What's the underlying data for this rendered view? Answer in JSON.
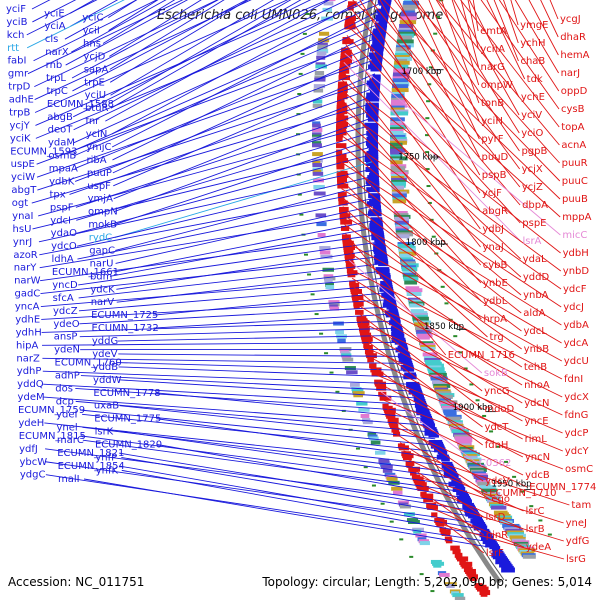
{
  "title": "Escherichia coli UMN026, complete genome",
  "footer": {
    "accession": "Accession: NC_011751",
    "summary": "Topology: circular; Length: 5,202,090 bp; Genes: 5,014"
  },
  "colors": {
    "forward": "#1a1adc",
    "reverse": "#e01515",
    "rna": "#2aa7e6",
    "pseudo": "#e58ad6",
    "backbone": "#888888"
  },
  "kbp_markers": [
    "1550 kbp",
    "1600 kbp",
    "1650 kbp",
    "1700 kbp",
    "1750 kbp",
    "1800 kbp",
    "1850 kbp",
    "1900 kbp",
    "1950 kbp"
  ],
  "left_labels": [
    "yciF",
    "yciE",
    "yciC",
    "yciB",
    "yciA",
    "yciI",
    "kch",
    "cls",
    "hns",
    "rtt",
    "narX",
    "ycjD",
    "fabI",
    "rnb",
    "sapA",
    "gmr",
    "trpL",
    "trpE",
    "trpD",
    "trpC",
    "yciU",
    "adhE",
    "ECUMN_1588",
    "btuR",
    "trpB",
    "abgB",
    "fnr",
    "ycjY",
    "deoT",
    "yciN",
    "yciK",
    "ydaM",
    "ymjC",
    "ECUMN_1593",
    "osmB",
    "ribA",
    "uspE",
    "mpaA",
    "puuP",
    "yciW",
    "ydbK",
    "uspF",
    "abgT",
    "tpx",
    "ymjA",
    "ogt",
    "pspF",
    "ompN",
    "ynaI",
    "ydcI",
    "mokB",
    "hsU",
    "ydaO",
    "rydC",
    "ynrJ",
    "ydcO",
    "gapC",
    "azoR",
    "ldhA",
    "narU",
    "narY",
    "ECUMN_1661",
    "bdm",
    "narW",
    "yncD",
    "ydcK",
    "gadC",
    "sfcA",
    "narV",
    "yncA",
    "ydcZ",
    "ECUMN_1725",
    "ydhE",
    "ydeO",
    "ECUMN_1732",
    "ydhH",
    "ansP",
    "yddG",
    "hipA",
    "ydeN",
    "ydeV",
    "narZ",
    "ECUMN_1760",
    "yddB",
    "ydhP",
    "adhP",
    "yddW",
    "yddQ",
    "dos",
    "ECUMN_1778",
    "ydeM",
    "dcp",
    "uxaB",
    "ECUMN_1759",
    "ydeI",
    "ECUMN_1775",
    "ydeH",
    "ynel",
    "lsrK",
    "ECUMN_1815",
    "marC",
    "ECUMN_1820",
    "ydfJ",
    "ECUMN_1821",
    "ynfP",
    "ybcW",
    "ECUMN_1854",
    "ynfK",
    "ydgC",
    "malI"
  ],
  "right_labels": [
    "ycgJ",
    "ymgE",
    "emtA",
    "dhaR",
    "ychH",
    "ychA",
    "hemA",
    "chaB",
    "narG",
    "narJ",
    "tdk",
    "ompW",
    "oppD",
    "ychE",
    "tonB",
    "cysB",
    "yciV",
    "yciH",
    "topA",
    "yciO",
    "pyrF",
    "acnA",
    "pgpB",
    "puuD",
    "puuR",
    "ycjX",
    "pspB",
    "puuC",
    "ycjZ",
    "ycjF",
    "puuB",
    "dbpA",
    "abgR",
    "mppA",
    "pspE",
    "ydbJ",
    "micC",
    "lsrA",
    "ynaJ",
    "ydbH",
    "ydaL",
    "cybB",
    "ynbD",
    "yddD",
    "ynbE",
    "ydcF",
    "ynbA",
    "ydbL",
    "ydcJ",
    "aldA",
    "hrpA",
    "ydbA",
    "ydcL",
    "trg",
    "ydcA",
    "ynbB",
    "ECUMN_1716",
    "ydcU",
    "tehB",
    "sokB",
    "fdnI",
    "nhoA",
    "yncG",
    "ydcX",
    "ydcN",
    "mdoD",
    "fdnG",
    "yncE",
    "ydcT",
    "ydcP",
    "rimL",
    "fdnH",
    "ydcY",
    "yncN",
    "C0362",
    "osmC",
    "ydcB",
    "ydcV",
    "ECUMN_1774",
    "ECUMN_1710",
    "ego",
    "tam",
    "lsrC",
    "lsrD",
    "yneJ",
    "lsrB",
    "pinR",
    "ydfG",
    "ydeA",
    "lsrF",
    "lsrG"
  ],
  "pink_labels": [
    "micC",
    "lsrA",
    "sokB",
    "C0362"
  ],
  "cyan_labels": [
    "rtt",
    "rydC"
  ]
}
